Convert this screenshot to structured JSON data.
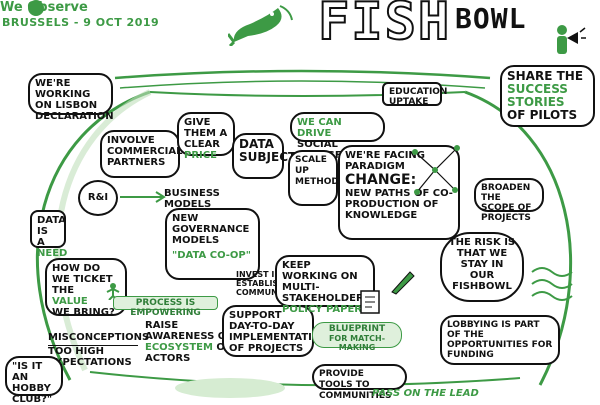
{
  "header": {
    "logo_text": "We Observe",
    "event_line": "BRUSSELS - 9 OCT 2019",
    "title_big": "FISH",
    "title_small": "BOWL"
  },
  "notes": {
    "lisbon": "WE'RE WORKING ON LISBON DECLARATION",
    "clear_price_1": "GIVE THEM A CLEAR",
    "clear_price_2": "PRICE",
    "commercial": "INVOLVE COMMERCIAL PARTNERS",
    "rni": "R&I",
    "business_models": "BUSINESS MODELS",
    "data_subjects": "DATA SUBJECTS",
    "drive_1": "WE CAN DRIVE",
    "drive_2": "SOCIAL TRANSFORMATION",
    "scale_up": "SCALE UP METHODOLOGIES",
    "education": "EDUCATION UPTAKE",
    "paradigm_1": "WE'RE FACING PARADIGM",
    "paradigm_2": "CHANGE:",
    "paradigm_3": "NEW PATHS OF CO-PRODUCTION OF KNOWLEDGE",
    "success_1": "SHARE THE",
    "success_2": "SUCCESS STORIES",
    "success_3": "OF PILOTS",
    "broaden": "BROADEN THE SCOPE OF PROJECTS",
    "data_need_1": "DATA IS A",
    "data_need_2": "NEED",
    "governance": "NEW GOVERNANCE MODELS",
    "data_coop": "\"DATA CO-OP\"",
    "invest": "INVEST IN ESTABLISHED COMMUNITIES",
    "ticket_1": "HOW DO WE TICKET THE",
    "ticket_2": "VALUE",
    "ticket_3": "WE BRING?",
    "process": "PROCESS IS EMPOWERING",
    "multi_1": "KEEP WORKING ON",
    "multi_2": "MULTI-STAKEHOLDER",
    "multi_3": "POLICY PAPER",
    "risk_1": "THE RISK IS THAT WE STAY IN OUR",
    "risk_2": "FISHBOWL",
    "misconceptions_1": "MISCONCEPTIONS",
    "misconceptions_2": "TOO HIGH EXPECTATIONS",
    "awareness_1": "RAISE AWARENESS ON",
    "awareness_2": "ECOSYSTEM",
    "awareness_3": "OF ACTORS",
    "support": "SUPPORT DAY-TO-DAY IMPLEMENTATION OF PROJECTS",
    "blueprint_1": "BLUEPRINT",
    "blueprint_2": "FOR MATCH-MAKING",
    "lobbying": "LOBBYING IS PART OF THE OPPORTUNITIES FOR FUNDING",
    "hobby": "\"IS IT AN HOBBY CLUB?\"",
    "tools": "PROVIDE TOOLS TO COMMUNITIES",
    "lead": "PASS ON THE LEAD"
  },
  "colors": {
    "green": "#3d9a45",
    "light_green": "#dff0dc",
    "ink": "#111111"
  },
  "icons": [
    "globe-icon",
    "fish-icon",
    "megaphone-person-icon",
    "network-icon",
    "pen-icon",
    "document-icon",
    "waves-icon",
    "person-icon"
  ]
}
